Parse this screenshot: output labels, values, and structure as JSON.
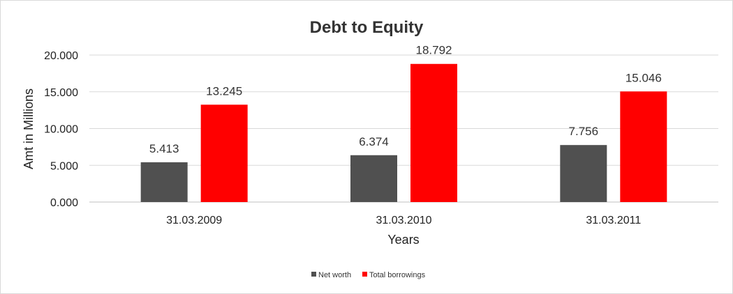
{
  "chart_data": {
    "type": "bar",
    "title": "Debt to Equity",
    "xlabel": "Years",
    "ylabel": "Amt in Millions",
    "categories": [
      "31.03.2009",
      "31.03.2010",
      "31.03.2011"
    ],
    "series": [
      {
        "name": "Net worth",
        "values": [
          5.413,
          6.374,
          7.756
        ],
        "color": "#505050",
        "labels": [
          "5.413",
          "6.374",
          "7.756"
        ]
      },
      {
        "name": "Total borrowings",
        "values": [
          13.245,
          18.792,
          15.046
        ],
        "color": "#ff0000",
        "labels": [
          "13.245",
          "18.792",
          "15.046"
        ]
      }
    ],
    "ylim": [
      0,
      20
    ],
    "yticks": [
      0,
      5,
      10,
      15,
      20
    ],
    "ytick_labels": [
      "0.000",
      "5.000",
      "10.000",
      "15.000",
      "20.000"
    ],
    "grid": true,
    "legend_position": "bottom"
  }
}
